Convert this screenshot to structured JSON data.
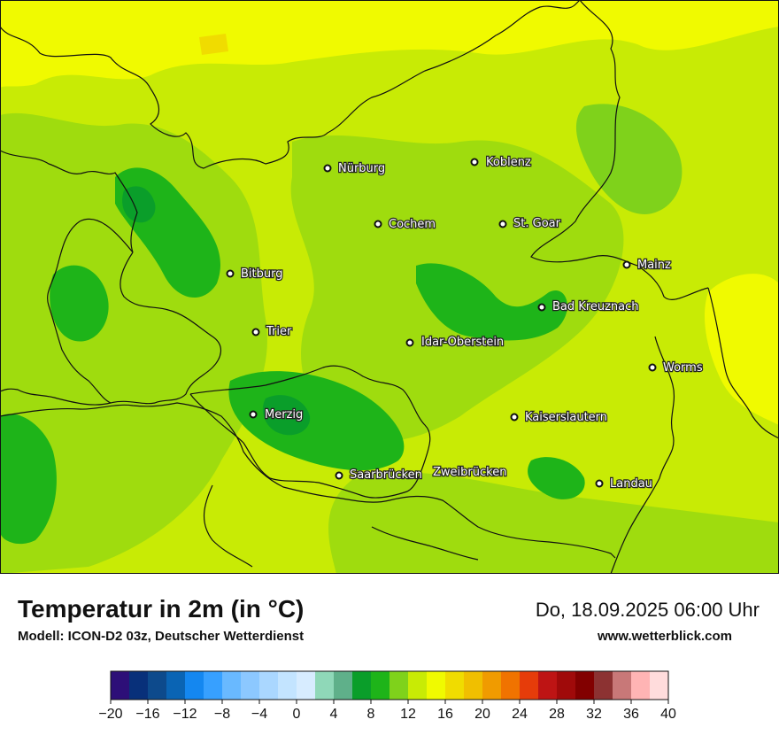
{
  "map": {
    "cities": [
      {
        "name": "Nürburg"
      },
      {
        "name": "Koblenz"
      },
      {
        "name": "Cochem"
      },
      {
        "name": "St. Goar"
      },
      {
        "name": "Mainz"
      },
      {
        "name": "Bitburg"
      },
      {
        "name": "Bad Kreuznach"
      },
      {
        "name": "Trier"
      },
      {
        "name": "Idar-Oberstein"
      },
      {
        "name": "Worms"
      },
      {
        "name": "Merzig"
      },
      {
        "name": "Kaiserslautern"
      },
      {
        "name": "Saarbrücken"
      },
      {
        "name": "Zweibrücken"
      },
      {
        "name": "Landau"
      }
    ],
    "colors": {
      "temp_11": "#7fd21b",
      "temp_12": "#9fdc0e",
      "temp_14": "#c8eb05",
      "temp_16": "#f0fa00",
      "temp_9": "#1eb419",
      "temp_8": "#0a9e2a",
      "border": "#111111"
    }
  },
  "title": "Temperatur in 2m (in °C)",
  "subtitle": "Modell: ICON-D2 03z, Deutscher Wetterdienst",
  "datetime": "Do, 18.09.2025 06:00 Uhr",
  "website": "www.wetterblick.com",
  "legend": {
    "colors": [
      "#2d0f78",
      "#08307a",
      "#0d4a8c",
      "#0a64b4",
      "#1487f0",
      "#37a0ff",
      "#69b9ff",
      "#8cc8ff",
      "#aad7ff",
      "#c3e4ff",
      "#d7ecff",
      "#8fd8b8",
      "#5fb08a",
      "#0a9e2a",
      "#1eb419",
      "#7fd21b",
      "#c8eb05",
      "#f0fa00",
      "#f0dc00",
      "#f0bf00",
      "#f09b00",
      "#f07300",
      "#e63c0a",
      "#be1414",
      "#a00a0a",
      "#820000",
      "#8c3232",
      "#c87878",
      "#ffb4b4",
      "#ffdcdc"
    ],
    "tick_labels": [
      "−20",
      "−16",
      "−12",
      "−8",
      "−4",
      "0",
      "4",
      "8",
      "12",
      "16",
      "20",
      "24",
      "28",
      "32",
      "36",
      "40"
    ]
  }
}
